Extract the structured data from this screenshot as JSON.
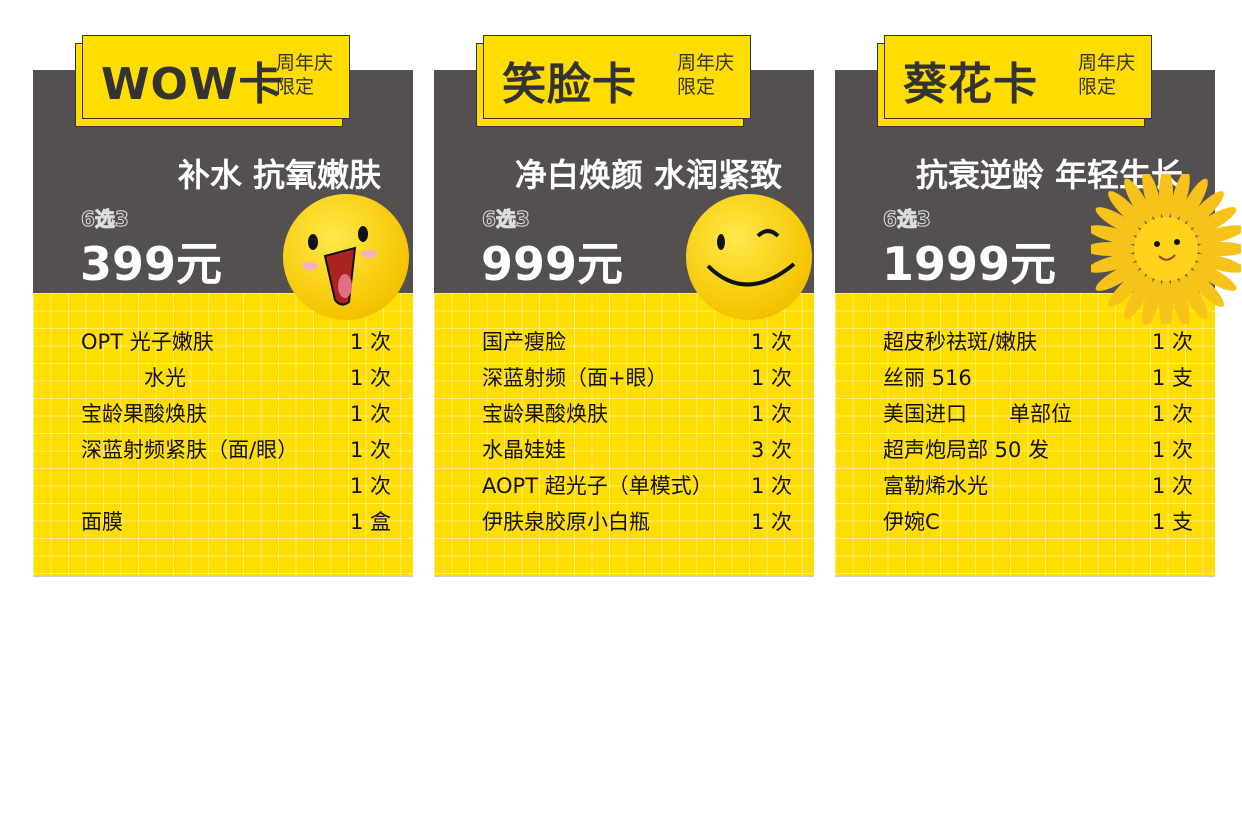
{
  "cards": [
    {
      "name": "WOW卡",
      "tag1": "周年庆",
      "tag2": "限定",
      "slogan": "补水 抗氧嫩肤",
      "pick": "6选3",
      "price": "399元",
      "icon": "laughing-face-icon",
      "items": [
        {
          "name": "OPT 光子嫩肤",
          "qty": "1 次"
        },
        {
          "name": "　　　水光",
          "qty": "1 次"
        },
        {
          "name": "宝龄果酸焕肤",
          "qty": "1 次"
        },
        {
          "name": "深蓝射频紧肤（面/眼）",
          "qty": "1 次"
        },
        {
          "name": "",
          "qty": "1 次"
        },
        {
          "name": "面膜",
          "qty": "1 盒"
        }
      ]
    },
    {
      "name": "笑脸卡",
      "tag1": "周年庆",
      "tag2": "限定",
      "slogan": "净白焕颜 水润紧致",
      "pick": "6选3",
      "price": "999元",
      "icon": "winking-face-icon",
      "items": [
        {
          "name": "国产瘦脸",
          "qty": "1 次"
        },
        {
          "name": "深蓝射频（面+眼）",
          "qty": "1 次"
        },
        {
          "name": "宝龄果酸焕肤",
          "qty": "1 次"
        },
        {
          "name": "水晶娃娃",
          "qty": "3 次"
        },
        {
          "name": "AOPT 超光子（单模式）",
          "qty": "1 次"
        },
        {
          "name": "伊肤泉胶原小白瓶",
          "qty": "1 次"
        }
      ]
    },
    {
      "name": "葵花卡",
      "tag1": "周年庆",
      "tag2": "限定",
      "slogan": "抗衰逆龄 年轻生长",
      "pick": "6选3",
      "price": "1999元",
      "icon": "sunflower-face-icon",
      "items": [
        {
          "name": "超皮秒祛斑/嫩肤",
          "qty": "1 次"
        },
        {
          "name": "丝丽 516",
          "qty": "1 支"
        },
        {
          "name": "美国进口　　单部位",
          "qty": "1 次"
        },
        {
          "name": "超声炮局部 50 发",
          "qty": "1 次"
        },
        {
          "name": "富勒烯水光",
          "qty": "1 次"
        },
        {
          "name": "伊婉C",
          "qty": "1 支"
        }
      ]
    }
  ],
  "colors": {
    "dark": "#555050",
    "yellow": "#FFDD00"
  }
}
